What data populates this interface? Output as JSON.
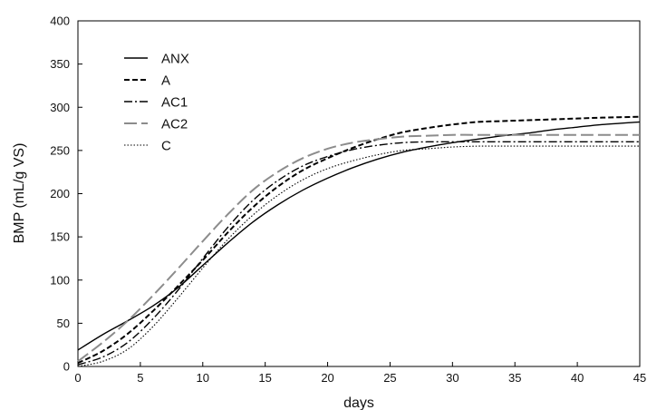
{
  "chart_data": {
    "type": "line",
    "xlabel": "days",
    "ylabel": "BMP (mL/g VS)",
    "xlim": [
      0,
      45
    ],
    "ylim": [
      0,
      400
    ],
    "xticks": [
      "0",
      "5",
      "10",
      "15",
      "20",
      "25",
      "30",
      "35",
      "40",
      "45"
    ],
    "yticks": [
      "0",
      "50",
      "100",
      "150",
      "200",
      "250",
      "300",
      "350",
      "400"
    ],
    "grid": false,
    "legend_position": "top-left",
    "series": [
      {
        "name": "ANX",
        "color": "#000000",
        "style": "solid",
        "x": [
          0,
          2,
          4,
          6,
          8,
          10,
          12,
          14,
          16,
          18,
          20,
          22,
          24,
          26,
          28,
          30,
          32,
          34,
          36,
          38,
          40,
          42,
          45
        ],
        "y": [
          19,
          37,
          53,
          70,
          91,
          117,
          143,
          167,
          187,
          204,
          218,
          230,
          240,
          248,
          254,
          259,
          263,
          267,
          270,
          274,
          277,
          280,
          283
        ]
      },
      {
        "name": "A",
        "color": "#000000",
        "style": "dashed",
        "x": [
          0,
          2,
          4,
          6,
          8,
          10,
          12,
          14,
          16,
          18,
          20,
          22,
          24,
          26,
          28,
          30,
          32,
          34,
          36,
          38,
          40,
          42,
          45
        ],
        "y": [
          4,
          18,
          38,
          64,
          93,
          123,
          155,
          184,
          208,
          227,
          241,
          253,
          263,
          271,
          276,
          280,
          283,
          284,
          285,
          286,
          287,
          288,
          289
        ]
      },
      {
        "name": "AC1",
        "color": "#000000",
        "style": "dashdot",
        "x": [
          0,
          2,
          4,
          6,
          8,
          10,
          12,
          14,
          16,
          18,
          20,
          22,
          24,
          26,
          28,
          30,
          32,
          34,
          36,
          38,
          40,
          42,
          45
        ],
        "y": [
          2,
          11,
          28,
          55,
          88,
          125,
          161,
          192,
          215,
          232,
          243,
          251,
          256,
          259,
          260,
          260,
          260,
          260,
          260,
          260,
          260,
          260,
          260
        ]
      },
      {
        "name": "AC2",
        "color": "#8c8c8c",
        "style": "longdash",
        "x": [
          0,
          2,
          4,
          6,
          8,
          10,
          12,
          14,
          16,
          18,
          20,
          22,
          24,
          26,
          28,
          30,
          32,
          34,
          36,
          38,
          40,
          42,
          45
        ],
        "y": [
          6,
          28,
          53,
          82,
          113,
          145,
          176,
          204,
          225,
          241,
          252,
          259,
          263,
          266,
          267,
          268,
          268,
          268,
          268,
          268,
          268,
          268,
          268
        ]
      },
      {
        "name": "C",
        "color": "#000000",
        "style": "dotted",
        "x": [
          0,
          2,
          4,
          6,
          8,
          10,
          12,
          14,
          16,
          18,
          20,
          22,
          24,
          26,
          28,
          30,
          32,
          34,
          36,
          38,
          40,
          42,
          45
        ],
        "y": [
          0,
          6,
          20,
          46,
          79,
          114,
          147,
          175,
          198,
          216,
          229,
          238,
          245,
          250,
          252,
          254,
          255,
          255,
          255,
          255,
          255,
          255,
          255
        ]
      }
    ]
  }
}
